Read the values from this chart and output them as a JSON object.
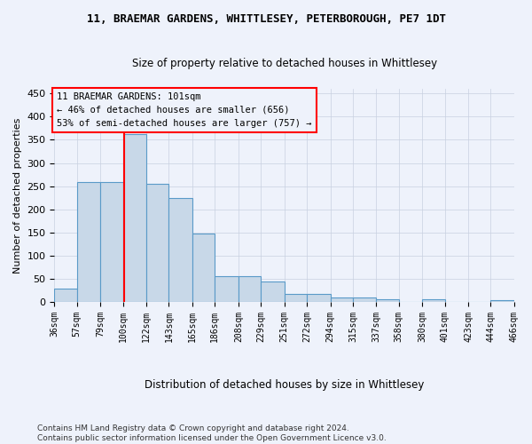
{
  "title": "11, BRAEMAR GARDENS, WHITTLESEY, PETERBOROUGH, PE7 1DT",
  "subtitle": "Size of property relative to detached houses in Whittlesey",
  "xlabel": "Distribution of detached houses by size in Whittlesey",
  "ylabel": "Number of detached properties",
  "bar_values": [
    30,
    260,
    260,
    363,
    255,
    225,
    148,
    57,
    57,
    45,
    18,
    18,
    11,
    11,
    7,
    0,
    6,
    0,
    0,
    4
  ],
  "bin_edges": [
    36,
    57,
    79,
    100,
    122,
    143,
    165,
    186,
    208,
    229,
    251,
    272,
    294,
    315,
    337,
    358,
    380,
    401,
    423,
    444,
    466
  ],
  "tick_labels": [
    "36sqm",
    "57sqm",
    "79sqm",
    "100sqm",
    "122sqm",
    "143sqm",
    "165sqm",
    "186sqm",
    "208sqm",
    "229sqm",
    "251sqm",
    "272sqm",
    "294sqm",
    "315sqm",
    "337sqm",
    "358sqm",
    "380sqm",
    "401sqm",
    "423sqm",
    "444sqm",
    "466sqm"
  ],
  "bar_color": "#c8d8e8",
  "bar_edge_color": "#5a9ac8",
  "reference_line_x": 101,
  "reference_line_color": "red",
  "annotation_text": "11 BRAEMAR GARDENS: 101sqm\n← 46% of detached houses are smaller (656)\n53% of semi-detached houses are larger (757) →",
  "annotation_box_color": "red",
  "ylim": [
    0,
    460
  ],
  "yticks": [
    0,
    50,
    100,
    150,
    200,
    250,
    300,
    350,
    400,
    450
  ],
  "footer": "Contains HM Land Registry data © Crown copyright and database right 2024.\nContains public sector information licensed under the Open Government Licence v3.0.",
  "background_color": "#eef2fb",
  "grid_color": "#c8d0e0"
}
